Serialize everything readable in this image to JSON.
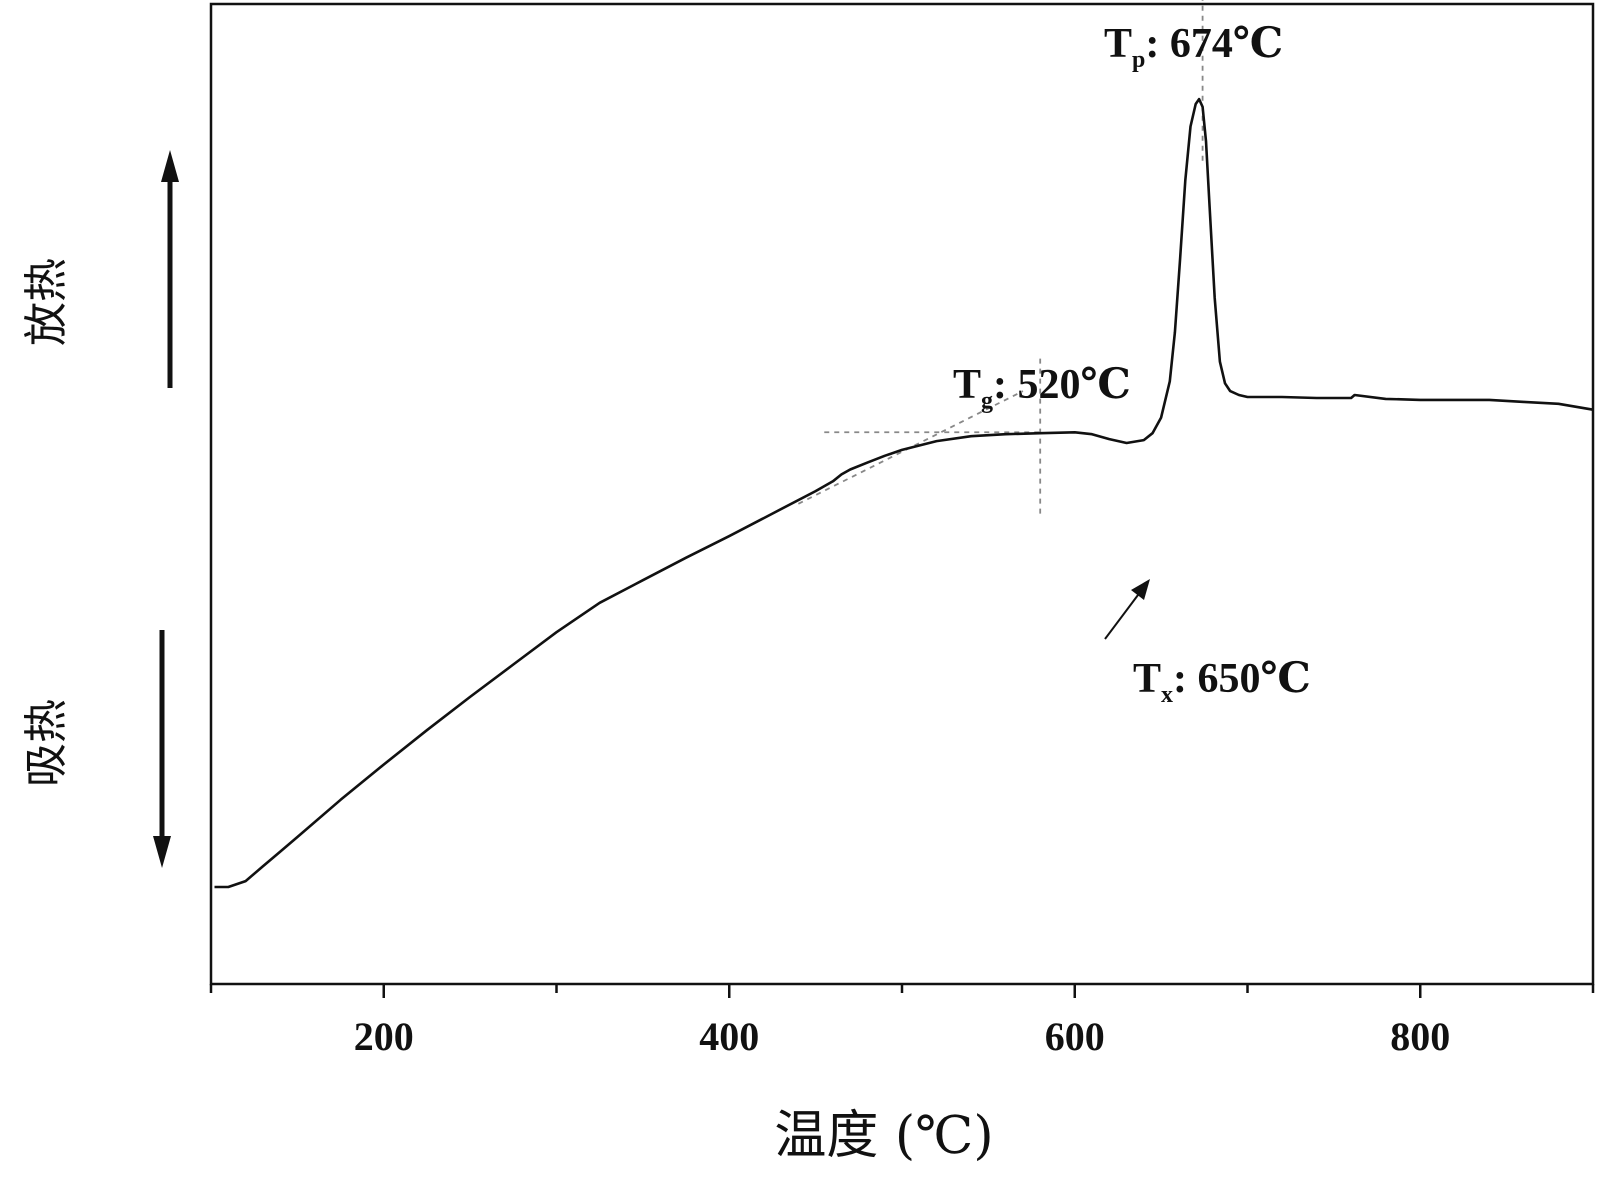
{
  "chart_data": {
    "type": "line",
    "xlabel": "温度 (℃)",
    "xlim": [
      100,
      900
    ],
    "x_ticks": [
      200,
      400,
      600,
      800
    ],
    "x_tick_labels": [
      "200",
      "400",
      "600",
      "800"
    ],
    "ylim": [
      0,
      100
    ],
    "y_ticks_shown": false,
    "grid": false,
    "series": [
      {
        "x": [
          102,
          110,
          120,
          130,
          140,
          150,
          175,
          200,
          225,
          250,
          275,
          300,
          325,
          350,
          375,
          400,
          425,
          450,
          460,
          465,
          470,
          480,
          490,
          500,
          520,
          540,
          560,
          580,
          600,
          610,
          620,
          630,
          640,
          645,
          650,
          655,
          658,
          661,
          664,
          667,
          670,
          672,
          674,
          676,
          678,
          681,
          684,
          687,
          690,
          695,
          700,
          710,
          720,
          740,
          760,
          762,
          780,
          800,
          820,
          840,
          860,
          880,
          900
        ],
        "y": [
          9.9,
          9.9,
          10.5,
          12.0,
          13.5,
          15.0,
          18.8,
          22.4,
          25.9,
          29.3,
          32.6,
          35.9,
          38.9,
          41.2,
          43.5,
          45.7,
          48.0,
          50.3,
          51.3,
          52.0,
          52.5,
          53.2,
          53.9,
          54.5,
          55.4,
          55.9,
          56.1,
          56.2,
          56.3,
          56.1,
          55.6,
          55.2,
          55.5,
          56.2,
          57.8,
          61.5,
          66.5,
          74.0,
          82.0,
          87.5,
          89.8,
          90.3,
          89.5,
          86.0,
          79.5,
          70.0,
          63.5,
          61.3,
          60.5,
          60.1,
          59.9,
          59.9,
          59.9,
          59.8,
          59.8,
          60.1,
          59.7,
          59.6,
          59.6,
          59.6,
          59.4,
          59.2,
          58.6
        ]
      }
    ],
    "annotations": [
      {
        "main": "T",
        "sub": "g",
        "text": ": 520℃"
      },
      {
        "main": "T",
        "sub": "x",
        "text": ": 650℃"
      },
      {
        "main": "T",
        "sub": "p",
        "text": ": 674℃"
      }
    ],
    "reference_lines": [
      {
        "type": "vertical-dashed",
        "x": 580,
        "y_range": [
          48.0,
          64.0
        ]
      },
      {
        "type": "horizontal-dashed",
        "y": 56.3,
        "x_range": [
          455,
          580
        ]
      },
      {
        "type": "tangent-dashed",
        "x_range": [
          440,
          570
        ],
        "y_range": [
          49.0,
          60.5
        ]
      },
      {
        "type": "vertical-dashed",
        "x": 674,
        "y_range": [
          84.0,
          102.0
        ]
      }
    ],
    "side_labels": {
      "top": "放热",
      "bottom": "吸热"
    }
  }
}
